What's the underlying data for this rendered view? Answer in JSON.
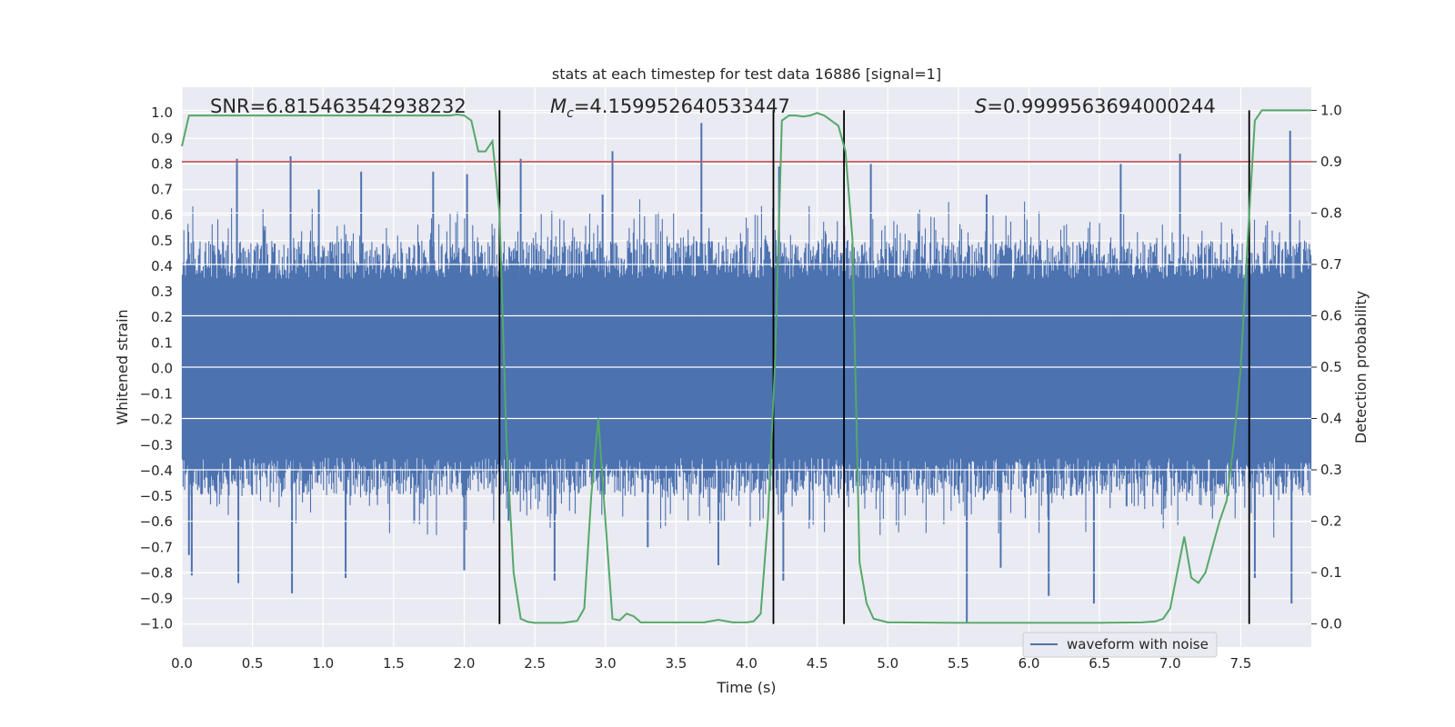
{
  "chart_data": {
    "type": "line",
    "title": "stats at each timestep for test data 16886 [signal=1]",
    "xlabel": "Time (s)",
    "ylabel": "Whitened strain",
    "y2label": "Detection probability",
    "xlim": [
      0.0,
      8.0
    ],
    "ylim": [
      -1.09,
      1.1
    ],
    "y2lim": [
      -0.045,
      1.045
    ],
    "x_ticks": [
      "0.0",
      "0.5",
      "1.0",
      "1.5",
      "2.0",
      "2.5",
      "3.0",
      "3.5",
      "4.0",
      "4.5",
      "5.0",
      "5.5",
      "6.0",
      "6.5",
      "7.0",
      "7.5"
    ],
    "x_tick_values": [
      0.0,
      0.5,
      1.0,
      1.5,
      2.0,
      2.5,
      3.0,
      3.5,
      4.0,
      4.5,
      5.0,
      5.5,
      6.0,
      6.5,
      7.0,
      7.5
    ],
    "y_ticks": [
      "1.0",
      "0.9",
      "0.8",
      "0.7",
      "0.6",
      "0.5",
      "0.4",
      "0.3",
      "0.2",
      "0.1",
      "0.0",
      "−0.1",
      "−0.2",
      "−0.3",
      "−0.4",
      "−0.5",
      "−0.6",
      "−0.7",
      "−0.8",
      "−0.9",
      "−1.0"
    ],
    "y_tick_values": [
      1.0,
      0.9,
      0.8,
      0.7,
      0.6,
      0.5,
      0.4,
      0.3,
      0.2,
      0.1,
      0.0,
      -0.1,
      -0.2,
      -0.3,
      -0.4,
      -0.5,
      -0.6,
      -0.7,
      -0.8,
      -0.9,
      -1.0
    ],
    "y2_ticks": [
      "1.0",
      "0.9",
      "0.8",
      "0.7",
      "0.6",
      "0.5",
      "0.4",
      "0.3",
      "0.2",
      "0.1",
      "0.0"
    ],
    "y2_tick_values": [
      1.0,
      0.9,
      0.8,
      0.7,
      0.6,
      0.5,
      0.4,
      0.3,
      0.2,
      0.1,
      0.0
    ],
    "annotations": {
      "snr": "SNR=6.815463542938232",
      "mc_symbol": "M",
      "mc_sub": "c",
      "mc_value": "=4.159952640533447",
      "s_symbol": "S",
      "s_value": "=0.9999563694000244"
    },
    "threshold": {
      "value": 0.9,
      "axis": "right",
      "color": "#c44e52"
    },
    "vertical_lines": [
      2.25,
      4.19,
      4.69,
      7.56
    ],
    "legend": {
      "label": "waveform with noise",
      "position": "lower right"
    },
    "series": [
      {
        "name": "waveform with noise",
        "color": "#4c72b0",
        "axis": "left",
        "envelope": {
          "upper": 0.5,
          "lower": -0.5,
          "core": 0.35
        },
        "spikes": [
          {
            "x": 0.39,
            "y": 0.82
          },
          {
            "x": 0.77,
            "y": 0.83
          },
          {
            "x": 0.97,
            "y": 0.7
          },
          {
            "x": 1.27,
            "y": 0.77
          },
          {
            "x": 1.78,
            "y": 0.77
          },
          {
            "x": 2.02,
            "y": 0.76
          },
          {
            "x": 2.4,
            "y": 0.82
          },
          {
            "x": 3.05,
            "y": 0.85
          },
          {
            "x": 3.68,
            "y": 0.96
          },
          {
            "x": 4.23,
            "y": 0.79
          },
          {
            "x": 4.88,
            "y": 0.8
          },
          {
            "x": 6.65,
            "y": 0.8
          },
          {
            "x": 7.07,
            "y": 0.84
          },
          {
            "x": 7.85,
            "y": 0.93
          },
          {
            "x": 2.98,
            "y": 0.68
          },
          {
            "x": 5.7,
            "y": 0.68
          },
          {
            "x": 0.05,
            "y": -0.73
          },
          {
            "x": 0.07,
            "y": -0.81
          },
          {
            "x": 0.4,
            "y": -0.84
          },
          {
            "x": 0.78,
            "y": -0.88
          },
          {
            "x": 1.16,
            "y": -0.82
          },
          {
            "x": 2.0,
            "y": -0.79
          },
          {
            "x": 2.64,
            "y": -0.83
          },
          {
            "x": 3.8,
            "y": -0.77
          },
          {
            "x": 4.26,
            "y": -0.83
          },
          {
            "x": 5.56,
            "y": -1.0
          },
          {
            "x": 6.14,
            "y": -0.89
          },
          {
            "x": 6.46,
            "y": -0.92
          },
          {
            "x": 7.86,
            "y": -0.92
          },
          {
            "x": 7.6,
            "y": -0.82
          },
          {
            "x": 5.8,
            "y": -0.78
          },
          {
            "x": 3.3,
            "y": -0.7
          }
        ]
      },
      {
        "name": "detection probability",
        "color": "#55a868",
        "axis": "right",
        "x": [
          0.0,
          0.05,
          0.1,
          0.15,
          0.2,
          0.3,
          0.4,
          0.5,
          0.6,
          0.7,
          0.8,
          0.9,
          1.0,
          1.1,
          1.2,
          1.3,
          1.4,
          1.5,
          1.6,
          1.7,
          1.75,
          1.8,
          1.85,
          1.9,
          1.95,
          2.0,
          2.05,
          2.1,
          2.15,
          2.2,
          2.25,
          2.3,
          2.35,
          2.4,
          2.45,
          2.5,
          2.55,
          2.6,
          2.7,
          2.8,
          2.85,
          2.9,
          2.95,
          3.0,
          3.05,
          3.1,
          3.15,
          3.2,
          3.25,
          3.3,
          3.4,
          3.5,
          3.6,
          3.7,
          3.8,
          3.9,
          4.0,
          4.05,
          4.1,
          4.15,
          4.2,
          4.25,
          4.3,
          4.35,
          4.4,
          4.45,
          4.5,
          4.55,
          4.6,
          4.65,
          4.7,
          4.75,
          4.8,
          4.85,
          4.9,
          5.0,
          5.1,
          5.5,
          6.0,
          6.5,
          6.8,
          6.9,
          6.95,
          7.0,
          7.05,
          7.1,
          7.15,
          7.2,
          7.25,
          7.3,
          7.35,
          7.4,
          7.45,
          7.5,
          7.55,
          7.6,
          7.65,
          7.7,
          7.75,
          7.8,
          7.9,
          8.0
        ],
        "values": [
          0.93,
          0.99,
          0.99,
          0.99,
          0.99,
          0.99,
          0.99,
          0.99,
          0.99,
          0.99,
          0.99,
          0.99,
          0.99,
          0.99,
          0.99,
          0.99,
          0.99,
          0.99,
          0.99,
          0.99,
          0.99,
          0.99,
          0.99,
          0.99,
          0.992,
          0.99,
          0.98,
          0.92,
          0.92,
          0.94,
          0.8,
          0.35,
          0.1,
          0.01,
          0.004,
          0.002,
          0.002,
          0.002,
          0.002,
          0.006,
          0.03,
          0.25,
          0.4,
          0.2,
          0.01,
          0.007,
          0.02,
          0.015,
          0.003,
          0.003,
          0.003,
          0.003,
          0.003,
          0.003,
          0.008,
          0.003,
          0.003,
          0.005,
          0.02,
          0.2,
          0.5,
          0.98,
          0.99,
          0.99,
          0.988,
          0.99,
          0.995,
          0.99,
          0.98,
          0.97,
          0.92,
          0.75,
          0.12,
          0.04,
          0.01,
          0.003,
          0.003,
          0.002,
          0.002,
          0.002,
          0.003,
          0.005,
          0.01,
          0.03,
          0.1,
          0.17,
          0.09,
          0.08,
          0.1,
          0.15,
          0.2,
          0.24,
          0.35,
          0.5,
          0.75,
          0.98,
          1.0,
          1.0,
          1.0,
          1.0,
          1.0,
          1.0
        ]
      }
    ]
  }
}
